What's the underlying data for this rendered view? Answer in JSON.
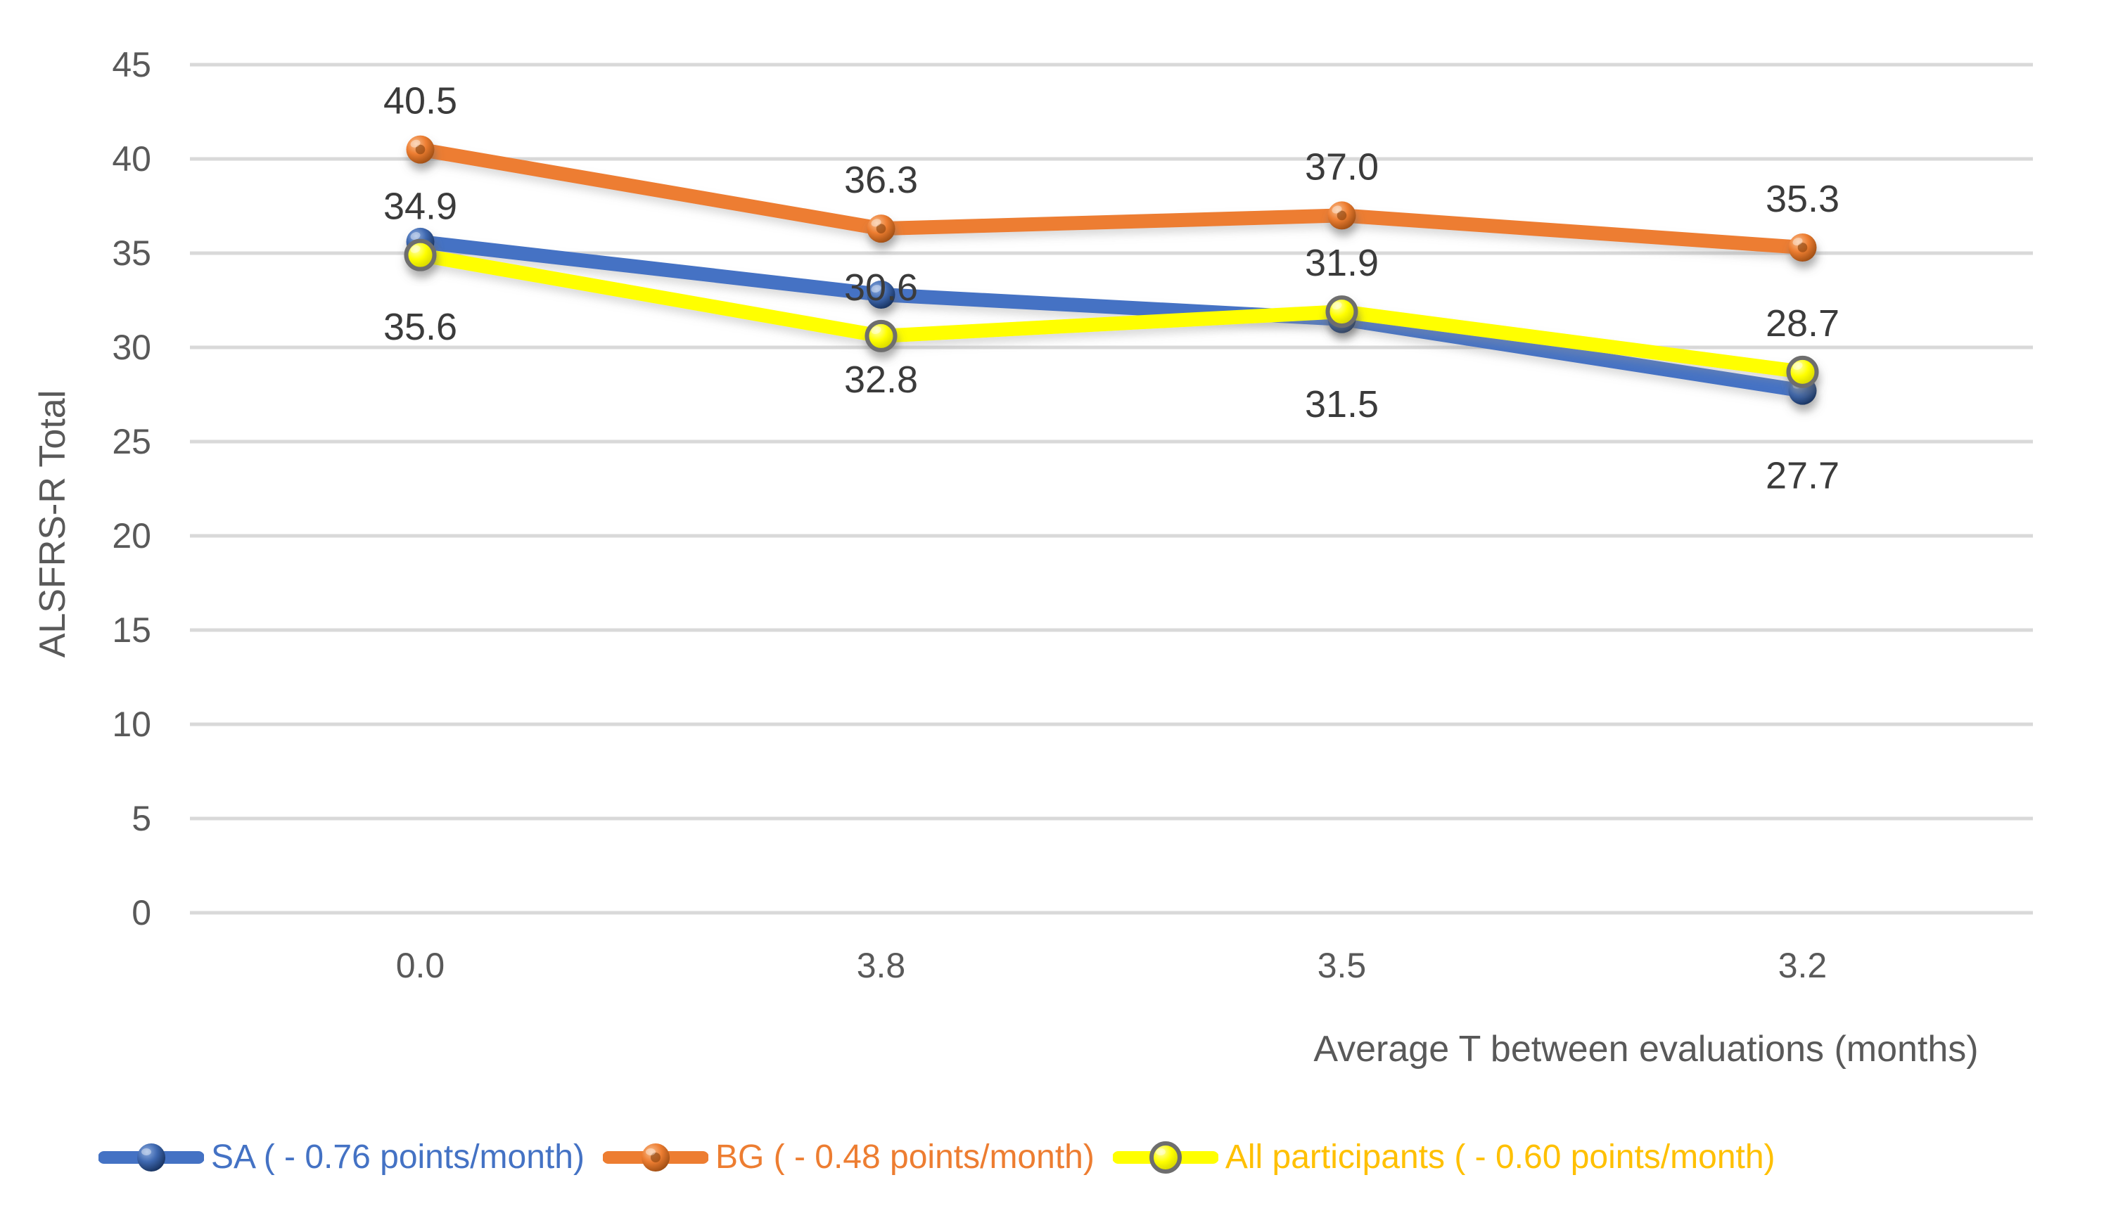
{
  "chart_data": {
    "type": "line",
    "categories": [
      "0.0",
      "3.8",
      "3.5",
      "3.2"
    ],
    "series": [
      {
        "name": "SA ( - 0.76 points/month)",
        "values": [
          35.6,
          32.8,
          31.5,
          27.7
        ],
        "color": "#4472C4",
        "legend_text_color": "#4472C4",
        "label_position": "below",
        "marker": {
          "light": "#8FAEE0",
          "base": "#3E68B0",
          "dark": "#122A52"
        }
      },
      {
        "name": "BG ( - 0.48 points/month)",
        "values": [
          40.5,
          36.3,
          37.0,
          35.3
        ],
        "color": "#ED7D31",
        "legend_text_color": "#ED7D31",
        "label_position": "above",
        "marker": {
          "light": "#F9BE8E",
          "base": "#ED7D31",
          "dark": "#93470F",
          "dot": "#8C4510"
        }
      },
      {
        "name": "All participants ( - 0.60 points/month)",
        "values": [
          34.9,
          30.6,
          31.9,
          28.7
        ],
        "color": "#FFFF00",
        "legend_text_color": "#FFC000",
        "label_position": "above",
        "marker": {
          "light": "#FFFFB0",
          "base": "#FFFF00",
          "dark": "#C9C900",
          "stroke": "#6E6E6E"
        }
      }
    ],
    "xlabel": "Average T between evaluations (months)",
    "ylabel": "ALSFRS-R Total",
    "ylim": [
      0,
      45
    ],
    "ytick_step": 5,
    "yticks": [
      "45",
      "40",
      "35",
      "30",
      "25",
      "20",
      "15",
      "10",
      "5",
      "0"
    ],
    "grid": true,
    "legend_position": "bottom",
    "value_format": "one_decimal"
  },
  "colors": {
    "background": "#FFFFFF",
    "gridline": "#D9D9D9",
    "axis_text": "#595959",
    "data_label_text": "#3B3B3B"
  }
}
